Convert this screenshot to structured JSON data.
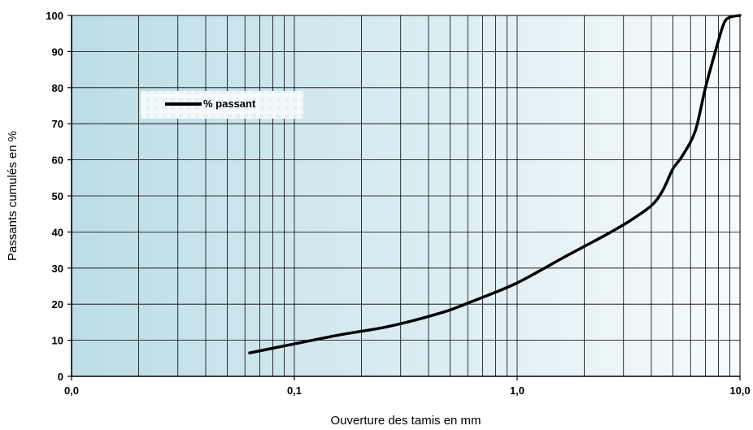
{
  "chart_data": {
    "type": "line",
    "title": "",
    "xlabel": "Ouverture des tamis en mm",
    "ylabel": "Passants cumulés en %",
    "x_scale": "log",
    "xlim": [
      0.01,
      10
    ],
    "ylim": [
      0,
      100
    ],
    "x_ticks": [
      {
        "value": 0.01,
        "label": "0,0"
      },
      {
        "value": 0.1,
        "label": "0,1"
      },
      {
        "value": 1,
        "label": "1,0"
      },
      {
        "value": 10,
        "label": "10,0"
      }
    ],
    "y_ticks": [
      0,
      10,
      20,
      30,
      40,
      50,
      60,
      70,
      80,
      90,
      100
    ],
    "grid": true,
    "legend_position": "top-left",
    "series": [
      {
        "name": "% passant",
        "color": "#000000",
        "x": [
          0.063,
          0.08,
          0.1,
          0.125,
          0.16,
          0.2,
          0.25,
          0.315,
          0.4,
          0.5,
          0.63,
          0.8,
          1.0,
          1.25,
          1.6,
          2.0,
          2.5,
          3.15,
          4.0,
          4.5,
          5.0,
          5.5,
          6.3,
          7.0,
          8.0,
          8.5,
          9.0,
          10.0
        ],
        "y": [
          6.5,
          7.8,
          9.0,
          10.2,
          11.5,
          12.5,
          13.5,
          14.9,
          16.6,
          18.4,
          20.8,
          23.3,
          25.9,
          29.1,
          32.8,
          36.0,
          39.2,
          42.8,
          47.3,
          51.5,
          57.5,
          61.0,
          68.0,
          80.0,
          93.0,
          98.0,
          99.5,
          100.0
        ]
      }
    ]
  },
  "background": {
    "gradient_left": "#bcdde6",
    "gradient_right": "#f6fbfc"
  }
}
